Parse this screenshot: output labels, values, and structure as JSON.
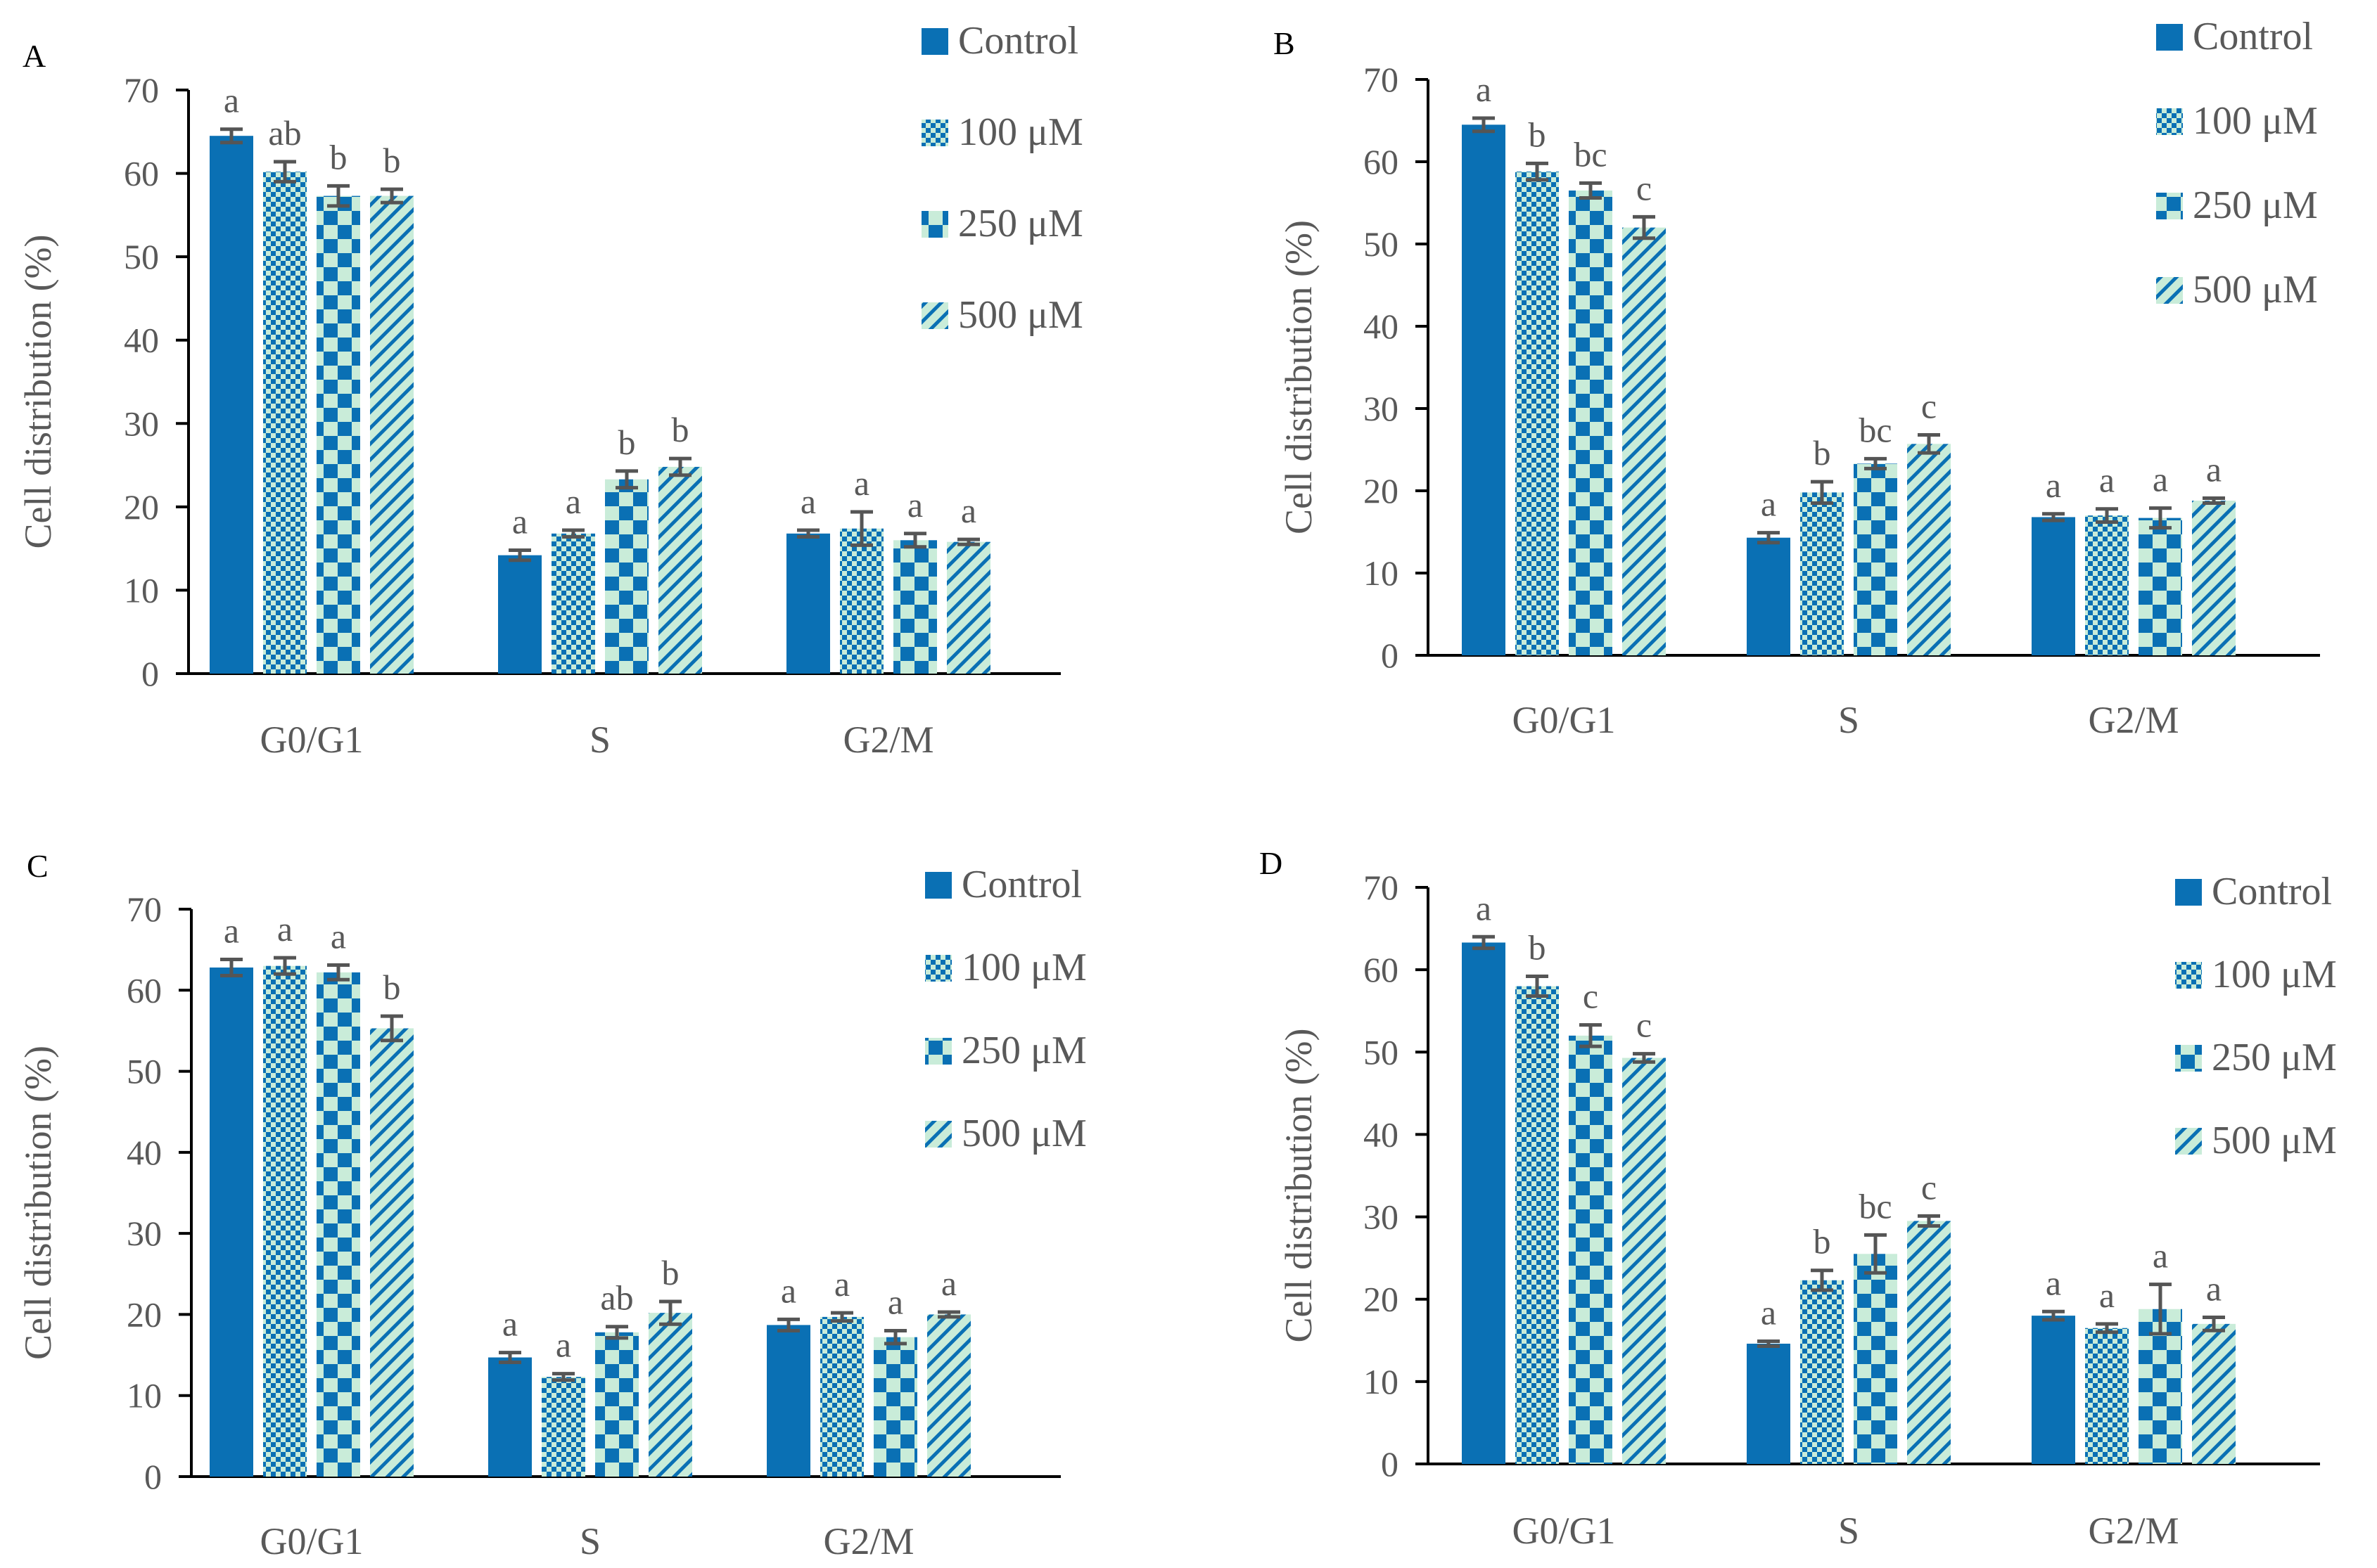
{
  "colors": {
    "control": "#0a70b4",
    "pattern_blue": "#0a70b4",
    "pattern_light": "#c9ecd9",
    "error_bar": "#555555",
    "axis": "#000000",
    "text": "#595959",
    "panel_letter": "#000000"
  },
  "legend_labels": [
    "Control",
    "100 μM",
    "250 μM",
    "500 μM"
  ],
  "chart_data": [
    {
      "panel": "A",
      "type": "bar",
      "ylabel": "Cell distribution (%)",
      "xlabel": "",
      "ylim": [
        0,
        70
      ],
      "yticks": [
        "0",
        "10",
        "20",
        "30",
        "40",
        "50",
        "60",
        "70"
      ],
      "categories": [
        "G0/G1",
        "S",
        "G2/M"
      ],
      "series": [
        {
          "name": "Control",
          "pattern": "solid",
          "values": [
            64.5,
            14.2,
            16.8
          ],
          "errors": [
            0.8,
            0.6,
            0.4
          ],
          "letters": [
            "a",
            "a",
            "a"
          ]
        },
        {
          "name": "100 μM",
          "pattern": "fine-check",
          "values": [
            60.2,
            16.8,
            17.4
          ],
          "errors": [
            1.2,
            0.4,
            2.0
          ],
          "letters": [
            "ab",
            "a",
            "a"
          ]
        },
        {
          "name": "250 μM",
          "pattern": "checker",
          "values": [
            57.3,
            23.3,
            16.0
          ],
          "errors": [
            1.2,
            1.0,
            0.8
          ],
          "letters": [
            "b",
            "b",
            "a"
          ]
        },
        {
          "name": "500 μM",
          "pattern": "diagonal",
          "values": [
            57.3,
            24.8,
            15.8
          ],
          "errors": [
            0.8,
            1.0,
            0.3
          ],
          "letters": [
            "b",
            "b",
            "a"
          ]
        }
      ]
    },
    {
      "panel": "B",
      "type": "bar",
      "ylabel": "Cell distribution (%)",
      "xlabel": "",
      "ylim": [
        0,
        70
      ],
      "yticks": [
        "0",
        "10",
        "20",
        "30",
        "40",
        "50",
        "60",
        "70"
      ],
      "categories": [
        "G0/G1",
        "S",
        "G2/M"
      ],
      "series": [
        {
          "name": "Control",
          "pattern": "solid",
          "values": [
            64.5,
            14.3,
            16.8
          ],
          "errors": [
            0.8,
            0.6,
            0.4
          ],
          "letters": [
            "a",
            "a",
            "a"
          ]
        },
        {
          "name": "100 μM",
          "pattern": "fine-check",
          "values": [
            58.8,
            19.8,
            17.0
          ],
          "errors": [
            1.0,
            1.3,
            0.8
          ],
          "letters": [
            "b",
            "b",
            "a"
          ]
        },
        {
          "name": "250 μM",
          "pattern": "checker",
          "values": [
            56.5,
            23.3,
            16.7
          ],
          "errors": [
            0.9,
            0.6,
            1.2
          ],
          "letters": [
            "bc",
            "bc",
            "a"
          ]
        },
        {
          "name": "500 μM",
          "pattern": "diagonal",
          "values": [
            52.0,
            25.7,
            18.8
          ],
          "errors": [
            1.3,
            1.1,
            0.3
          ],
          "letters": [
            "c",
            "c",
            "a"
          ]
        }
      ]
    },
    {
      "panel": "C",
      "type": "bar",
      "ylabel": "Cell distribution (%)",
      "xlabel": "",
      "ylim": [
        0,
        70
      ],
      "yticks": [
        "0",
        "10",
        "20",
        "30",
        "40",
        "50",
        "60",
        "70"
      ],
      "categories": [
        "G0/G1",
        "S",
        "G2/M"
      ],
      "series": [
        {
          "name": "Control",
          "pattern": "solid",
          "values": [
            62.8,
            14.7,
            18.7
          ],
          "errors": [
            1.0,
            0.6,
            0.7
          ],
          "letters": [
            "a",
            "a",
            "a"
          ]
        },
        {
          "name": "100 μM",
          "pattern": "fine-check",
          "values": [
            63.0,
            12.3,
            19.7
          ],
          "errors": [
            1.0,
            0.4,
            0.5
          ],
          "letters": [
            "a",
            "a",
            "a"
          ]
        },
        {
          "name": "250 μM",
          "pattern": "checker",
          "values": [
            62.2,
            17.8,
            17.2
          ],
          "errors": [
            0.9,
            0.7,
            0.8
          ],
          "letters": [
            "a",
            "ab",
            "a"
          ]
        },
        {
          "name": "500 μM",
          "pattern": "diagonal",
          "values": [
            55.3,
            20.2,
            20.0
          ],
          "errors": [
            1.5,
            1.4,
            0.3
          ],
          "letters": [
            "b",
            "b",
            "a"
          ]
        }
      ]
    },
    {
      "panel": "D",
      "type": "bar",
      "ylabel": "Cell distribution (%)",
      "xlabel": "",
      "ylim": [
        0,
        70
      ],
      "yticks": [
        "0",
        "10",
        "20",
        "30",
        "40",
        "50",
        "60",
        "70"
      ],
      "categories": [
        "G0/G1",
        "S",
        "G2/M"
      ],
      "series": [
        {
          "name": "Control",
          "pattern": "solid",
          "values": [
            63.3,
            14.6,
            18.0
          ],
          "errors": [
            0.7,
            0.3,
            0.5
          ],
          "letters": [
            "a",
            "a",
            "a"
          ]
        },
        {
          "name": "100 μM",
          "pattern": "fine-check",
          "values": [
            58.0,
            22.3,
            16.5
          ],
          "errors": [
            1.2,
            1.2,
            0.5
          ],
          "letters": [
            "b",
            "b",
            "a"
          ]
        },
        {
          "name": "250 μM",
          "pattern": "checker",
          "values": [
            52.0,
            25.5,
            18.8
          ],
          "errors": [
            1.3,
            2.3,
            3.0
          ],
          "letters": [
            "c",
            "bc",
            "a"
          ]
        },
        {
          "name": "500 μM",
          "pattern": "diagonal",
          "values": [
            49.3,
            29.5,
            17.0
          ],
          "errors": [
            0.5,
            0.6,
            0.8
          ],
          "letters": [
            "c",
            "c",
            "a"
          ]
        }
      ]
    }
  ]
}
